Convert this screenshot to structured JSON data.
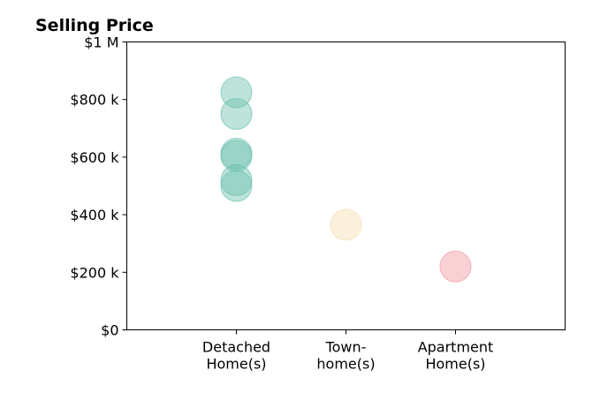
{
  "chart_data": {
    "type": "scatter",
    "title": "Selling Price",
    "xlabel": "",
    "ylabel": "",
    "categories": [
      "Detached\nHome(s)",
      "Town-\nhome(s)",
      "Apartment\nHome(s)"
    ],
    "xlim": [
      0,
      4
    ],
    "ylim": [
      0,
      1000000
    ],
    "yticks": [
      {
        "value": 0,
        "label": "$0"
      },
      {
        "value": 200000,
        "label": "$200 k"
      },
      {
        "value": 400000,
        "label": "$400 k"
      },
      {
        "value": 600000,
        "label": "$600 k"
      },
      {
        "value": 800000,
        "label": "$800 k"
      },
      {
        "value": 1000000,
        "label": "$1 M"
      }
    ],
    "grid": false,
    "legend": "none",
    "series": [
      {
        "category": "Detached\nHome(s)",
        "color": "#6cc0b0",
        "values": [
          825000,
          750000,
          612000,
          604000,
          520000,
          500000
        ]
      },
      {
        "category": "Town-\nhome(s)",
        "color": "#f5deb0",
        "values": [
          365000
        ]
      },
      {
        "category": "Apartment\nHome(s)",
        "color": "#f29aa2",
        "values": [
          220000
        ]
      }
    ]
  }
}
